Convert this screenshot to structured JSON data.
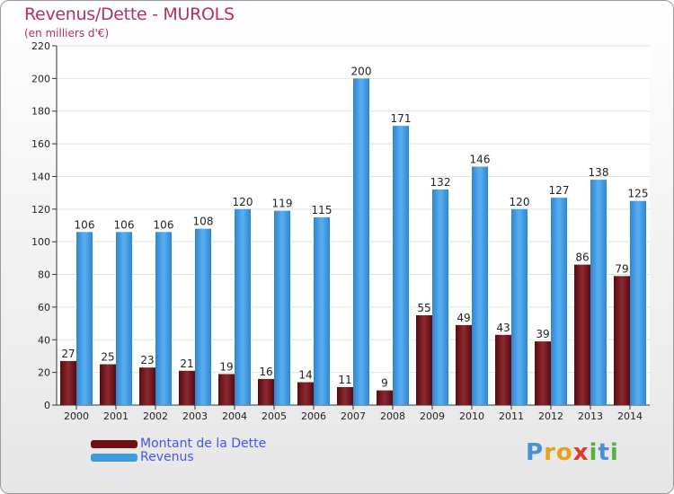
{
  "header": {
    "title": "Revenus/Dette - MUROLS",
    "subtitle": "(en milliers d'€)"
  },
  "colors": {
    "dette": "#6e0f14",
    "revenus": "#3d9ae3",
    "title": "#b0306a",
    "legend_text": "#4455ee"
  },
  "chart_data": {
    "type": "bar",
    "title": "Revenus/Dette - MUROLS",
    "subtitle": "(en milliers d'€)",
    "categories": [
      "2000",
      "2001",
      "2002",
      "2003",
      "2004",
      "2005",
      "2006",
      "2007",
      "2008",
      "2009",
      "2010",
      "2011",
      "2012",
      "2013",
      "2014"
    ],
    "series": [
      {
        "name": "Montant de la Dette",
        "values": [
          27,
          25,
          23,
          21,
          19,
          16,
          14,
          11,
          9,
          55,
          49,
          43,
          39,
          86,
          79
        ]
      },
      {
        "name": "Revenus",
        "values": [
          106,
          106,
          106,
          108,
          120,
          119,
          115,
          200,
          171,
          132,
          146,
          120,
          127,
          138,
          125
        ]
      }
    ],
    "ylim": [
      0,
      220
    ],
    "yticks": [
      0,
      20,
      40,
      60,
      80,
      100,
      120,
      140,
      160,
      180,
      200,
      220
    ],
    "grid": true,
    "legend": "bottom-left"
  },
  "logo": {
    "letters": [
      "P",
      "r",
      "o",
      "x",
      "i",
      "t",
      "i"
    ]
  }
}
